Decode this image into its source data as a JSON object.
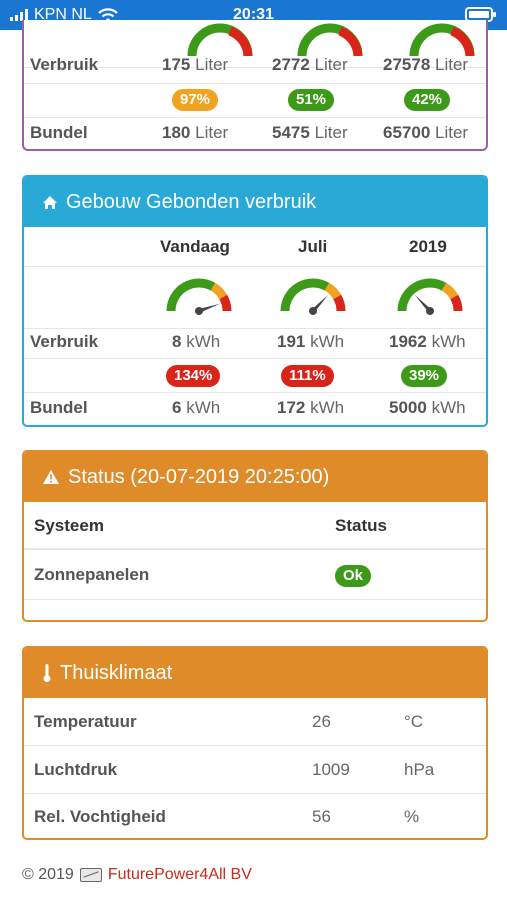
{
  "statusbar": {
    "carrier": "KPN NL",
    "time": "20:31"
  },
  "water": {
    "verbruik_label": "Verbruik",
    "bundel_label": "Bundel",
    "unit": "Liter",
    "verbruik": [
      "175",
      "2772",
      "27578"
    ],
    "badges": [
      "97%",
      "51%",
      "42%"
    ],
    "bundel": [
      "180",
      "5475",
      "65700"
    ]
  },
  "energy": {
    "title": "Gebouw Gebonden verbruik",
    "columns": [
      "Vandaag",
      "Juli",
      "2019"
    ],
    "verbruik_label": "Verbruik",
    "bundel_label": "Bundel",
    "unit": "kWh",
    "verbruik": [
      "8",
      "191",
      "1962"
    ],
    "badges": [
      "134%",
      "111%",
      "39%"
    ],
    "bundel": [
      "6",
      "172",
      "5000"
    ],
    "gauge_levels": [
      1.34,
      1.11,
      0.39
    ]
  },
  "status": {
    "title": "Status (20-07-2019 20:25:00)",
    "header_system": "Systeem",
    "header_status": "Status",
    "rows": [
      {
        "system": "Zonnepanelen",
        "status": "Ok"
      }
    ]
  },
  "climate": {
    "title": "Thuisklimaat",
    "rows": [
      {
        "label": "Temperatuur",
        "value": "26",
        "unit": "°C"
      },
      {
        "label": "Luchtdruk",
        "value": "1009",
        "unit": "hPa"
      },
      {
        "label": "Rel. Vochtigheid",
        "value": "56",
        "unit": "%"
      }
    ]
  },
  "footer": {
    "copyright": "© 2019",
    "brand": "FuturePower4All BV"
  },
  "colors": {
    "green": "#3c9a18",
    "orange": "#f0a320",
    "red": "#d9241a",
    "blue": "#29a9d6",
    "amber": "#e08b2a"
  }
}
